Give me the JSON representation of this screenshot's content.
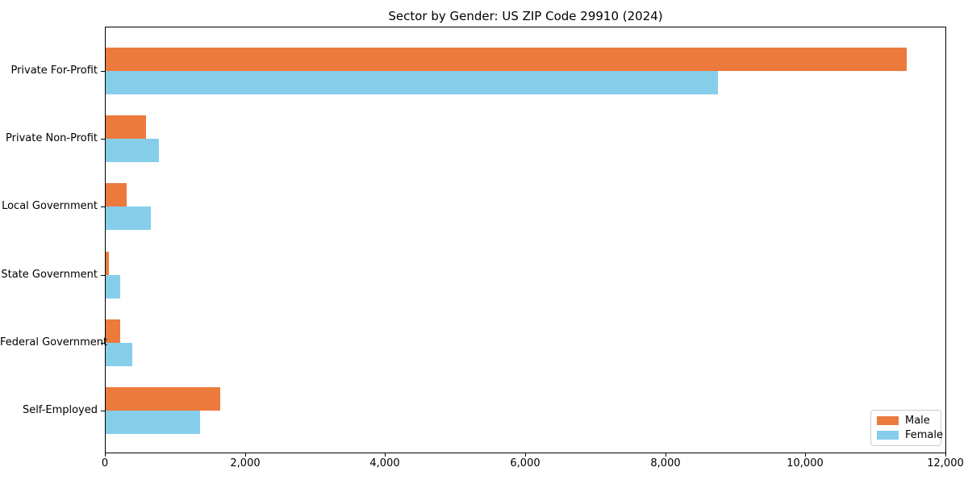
{
  "title": "Sector by Gender: US ZIP Code 29910 (2024)",
  "colors": {
    "male": "#ec7a3c",
    "female": "#87ceeb",
    "axis": "#000000",
    "legend_border": "#cccccc",
    "background": "#ffffff"
  },
  "chart_data": {
    "type": "bar",
    "orientation": "horizontal",
    "title": "Sector by Gender: US ZIP Code 29910 (2024)",
    "xlabel": "",
    "ylabel": "",
    "categories": [
      "Private For-Profit",
      "Private Non-Profit",
      "Local Government",
      "State Government",
      "Federal Government",
      "Self-Employed"
    ],
    "series": [
      {
        "name": "Male",
        "color": "#ec7a3c",
        "values": [
          11450,
          580,
          300,
          50,
          210,
          1640
        ]
      },
      {
        "name": "Female",
        "color": "#87ceeb",
        "values": [
          8750,
          760,
          640,
          210,
          380,
          1350
        ]
      }
    ],
    "xlim": [
      0,
      12000
    ],
    "x_ticks": [
      0,
      2000,
      4000,
      6000,
      8000,
      10000,
      12000
    ],
    "x_tick_labels": [
      "0",
      "2,000",
      "4,000",
      "6,000",
      "8,000",
      "10,000",
      "12,000"
    ],
    "grid": false,
    "legend_position": "lower right"
  },
  "legend": {
    "items": [
      {
        "label": "Male"
      },
      {
        "label": "Female"
      }
    ]
  }
}
